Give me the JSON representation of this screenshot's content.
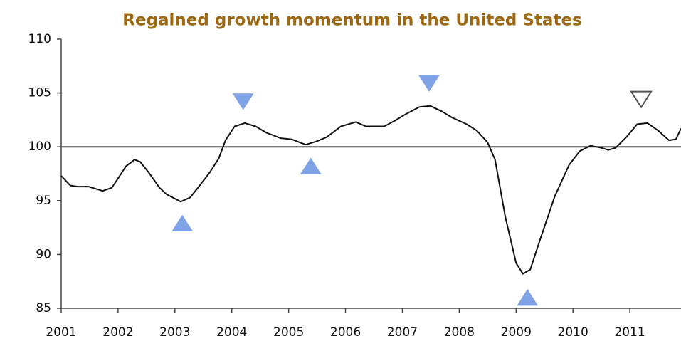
{
  "chart_data": {
    "type": "line",
    "title": "Regalned growth momentum in the United States",
    "x": [
      2001.0,
      2001.16,
      2001.29,
      2001.48,
      2001.73,
      2001.89,
      2001.98,
      2002.14,
      2002.29,
      2002.39,
      2002.54,
      2002.73,
      2002.85,
      2003.1,
      2003.27,
      2003.42,
      2003.61,
      2003.77,
      2003.89,
      2004.05,
      2004.23,
      2004.42,
      2004.61,
      2004.86,
      2005.05,
      2005.3,
      2005.49,
      2005.67,
      2005.92,
      2006.18,
      2006.36,
      2006.68,
      2006.86,
      2007.05,
      2007.3,
      2007.49,
      2007.69,
      2007.88,
      2008.13,
      2008.31,
      2008.5,
      2008.63,
      2008.81,
      2009.0,
      2009.12,
      2009.25,
      2009.43,
      2009.68,
      2009.93,
      2010.12,
      2010.31,
      2010.5,
      2010.62,
      2010.75,
      2010.94,
      2011.13,
      2011.31,
      2011.5,
      2011.69,
      2011.81,
      2011.9
    ],
    "series": [
      {
        "color": "#111111",
        "values": [
          97.3,
          96.4,
          96.3,
          96.3,
          95.9,
          96.2,
          96.9,
          98.2,
          98.8,
          98.6,
          97.6,
          96.2,
          95.6,
          94.9,
          95.3,
          96.3,
          97.6,
          98.9,
          100.6,
          101.9,
          102.2,
          101.9,
          101.3,
          100.8,
          100.7,
          100.2,
          100.5,
          100.9,
          101.9,
          102.3,
          101.9,
          101.9,
          102.4,
          103.0,
          103.7,
          103.8,
          103.3,
          102.7,
          102.1,
          101.5,
          100.4,
          98.8,
          93.5,
          89.2,
          88.2,
          88.6,
          91.5,
          95.4,
          98.3,
          99.6,
          100.1,
          99.9,
          99.7,
          99.9,
          100.9,
          102.1,
          102.2,
          101.5,
          100.6,
          100.7,
          101.7
        ]
      }
    ],
    "markers": [
      {
        "x": 2003.13,
        "y": 92.9,
        "shape": "triangle-up",
        "color": "#7fa3e6"
      },
      {
        "x": 2004.2,
        "y": 104.2,
        "shape": "triangle-down",
        "color": "#7fa3e6"
      },
      {
        "x": 2005.39,
        "y": 98.2,
        "shape": "triangle-up",
        "color": "#7fa3e6"
      },
      {
        "x": 2007.47,
        "y": 105.9,
        "shape": "triangle-down",
        "color": "#7fa3e6"
      },
      {
        "x": 2009.2,
        "y": 86.0,
        "shape": "triangle-up",
        "color": "#7fa3e6"
      },
      {
        "x": 2011.2,
        "y": 104.4,
        "shape": "triangle-down",
        "color": "none"
      }
    ],
    "reference_line": 100,
    "xlim": [
      2001,
      2011.9
    ],
    "xticks": [
      2001,
      2002,
      2003,
      2004,
      2005,
      2006,
      2007,
      2008,
      2009,
      2010,
      2011
    ],
    "ylim": [
      85,
      110
    ],
    "yticks": [
      85,
      90,
      95,
      100,
      105,
      110
    ]
  }
}
